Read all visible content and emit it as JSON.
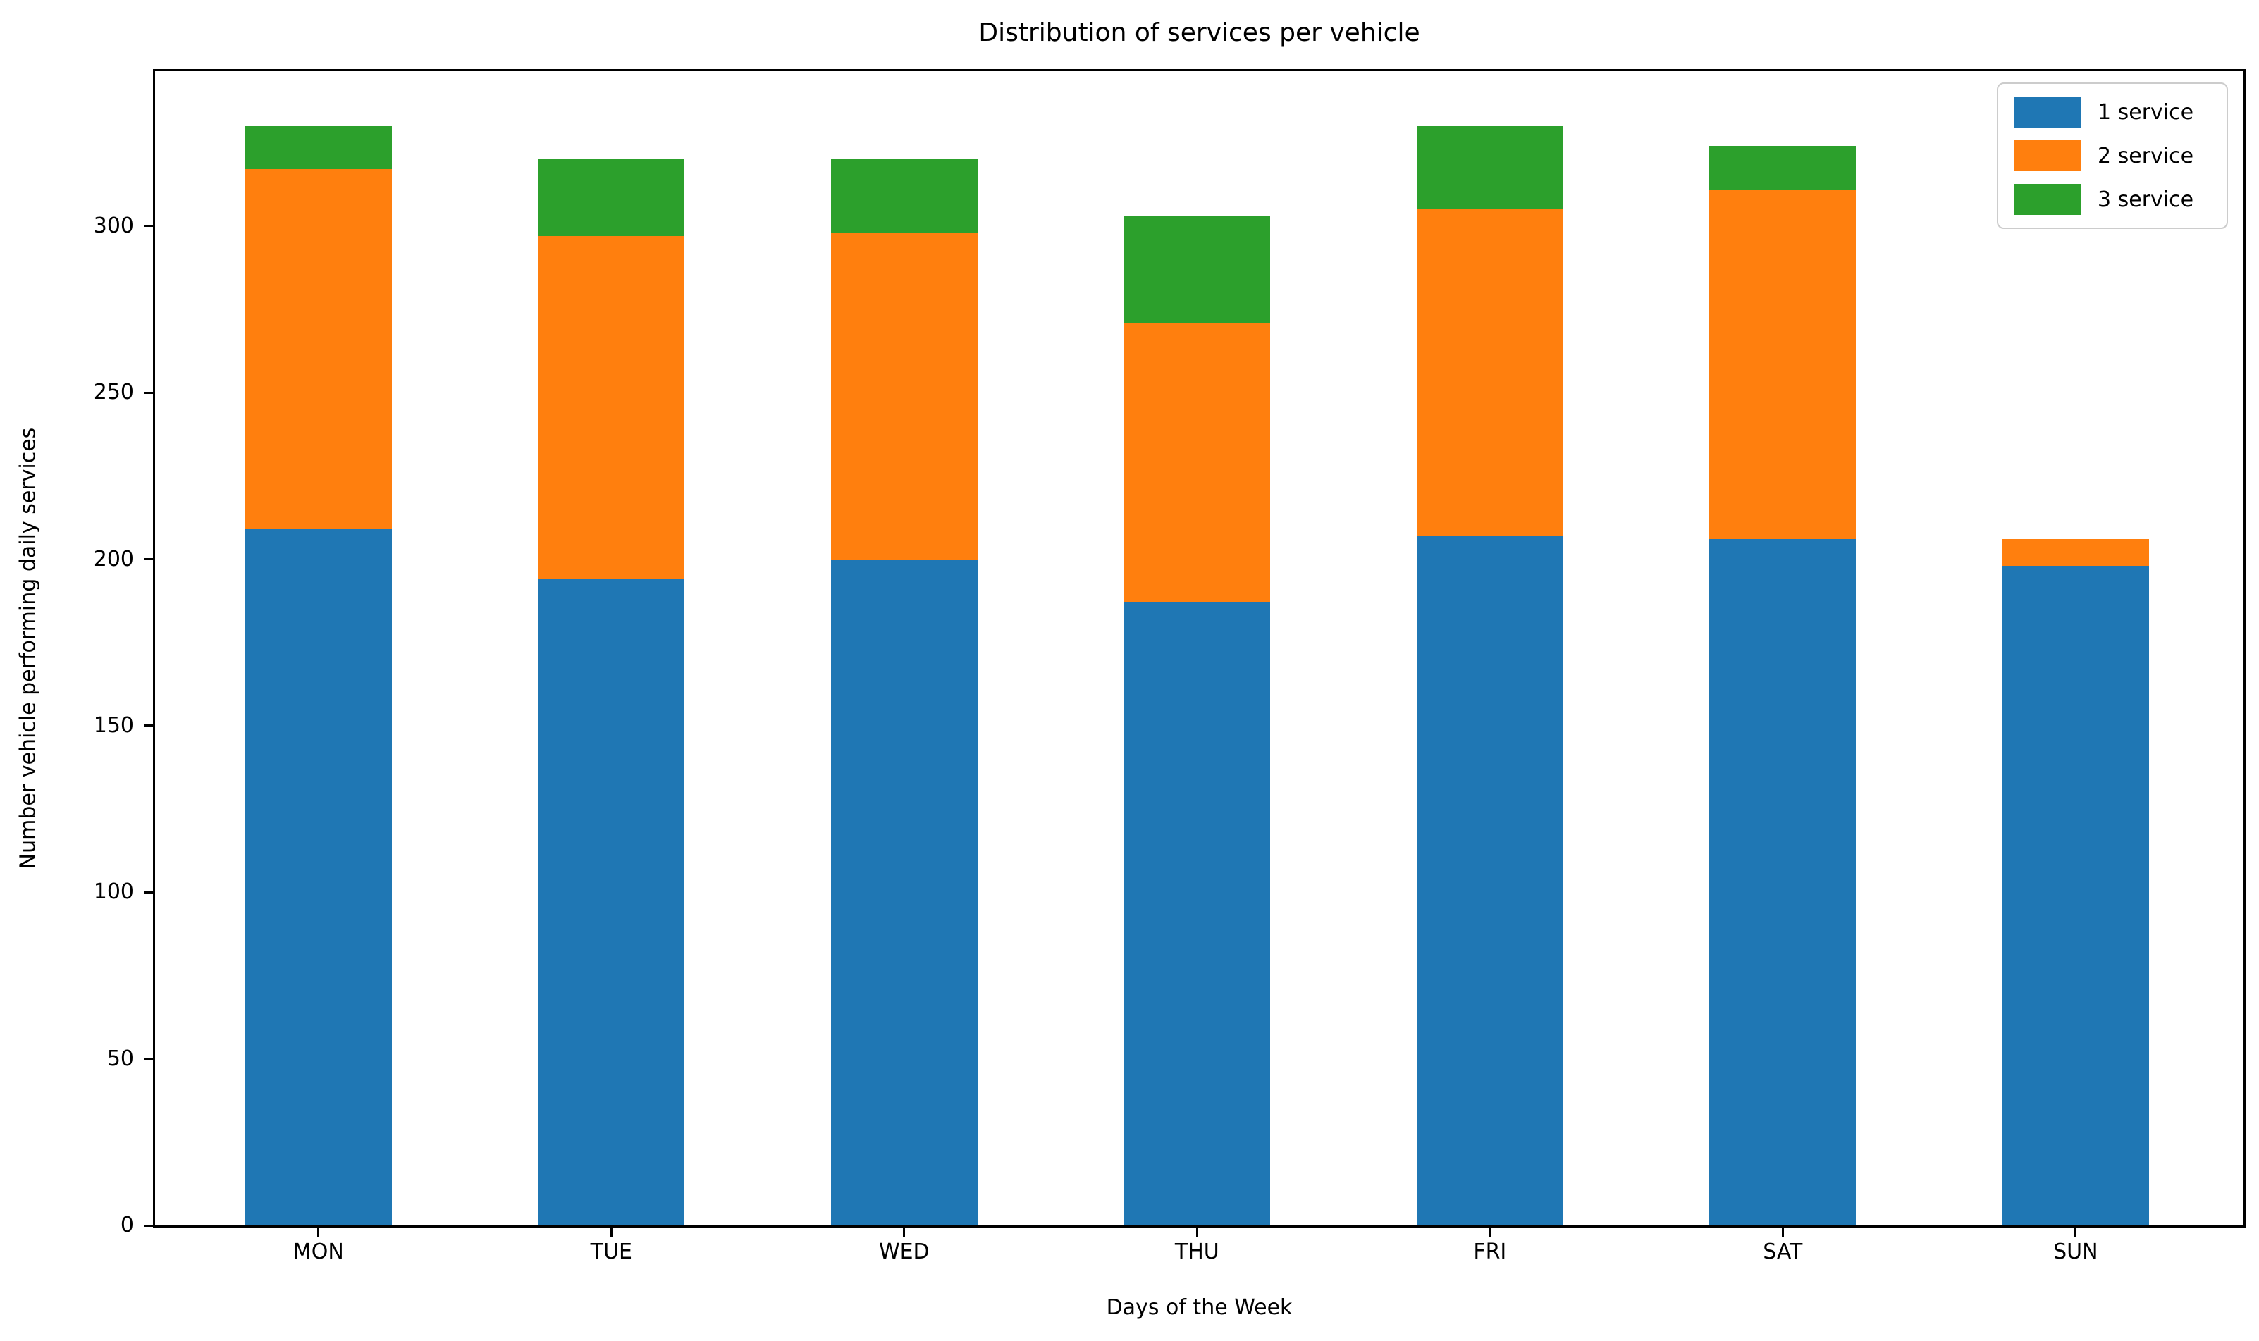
{
  "chart_data": {
    "type": "bar",
    "stacked": true,
    "title": "Distribution of services per vehicle",
    "xlabel": "Days of the Week",
    "ylabel": "Number vehicle performing daily services",
    "categories": [
      "MON",
      "TUE",
      "WED",
      "THU",
      "FRI",
      "SAT",
      "SUN"
    ],
    "series": [
      {
        "name": "1 service",
        "color": "#1f77b4",
        "values": [
          209,
          194,
          200,
          187,
          207,
          206,
          198
        ]
      },
      {
        "name": "2 service",
        "color": "#ff7f0e",
        "values": [
          108,
          103,
          98,
          84,
          98,
          105,
          8
        ]
      },
      {
        "name": "3 service",
        "color": "#2ca02c",
        "values": [
          13,
          23,
          22,
          32,
          25,
          13,
          0
        ]
      }
    ],
    "stack_totals": [
      330,
      320,
      320,
      303,
      330,
      324,
      206
    ],
    "yticks": [
      0,
      50,
      100,
      150,
      200,
      250,
      300
    ],
    "ylim": [
      0,
      346.5
    ],
    "grid": false,
    "legend_position": "upper right",
    "colors": {
      "spine": "#000000",
      "background": "#ffffff",
      "legend_border": "#cccccc"
    }
  }
}
